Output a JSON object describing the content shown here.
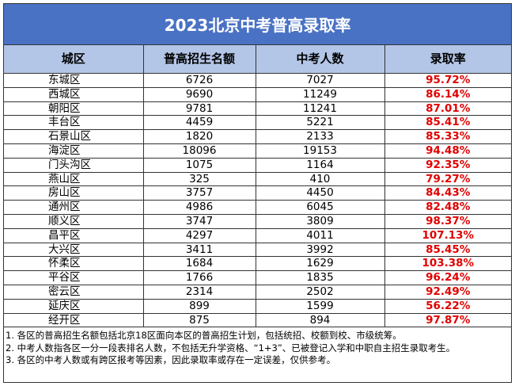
{
  "header": {
    "title": "2023北京中考普高录取率"
  },
  "table": {
    "columns": [
      "城区",
      "普高招生名额",
      "中考人数",
      "录取率"
    ],
    "rows": [
      [
        "东城区",
        6726,
        7027,
        "95.72%"
      ],
      [
        "西城区",
        9690,
        11249,
        "86.14%"
      ],
      [
        "朝阳区",
        9781,
        11241,
        "87.01%"
      ],
      [
        "丰台区",
        4459,
        5221,
        "85.41%"
      ],
      [
        "石景山区",
        1820,
        2133,
        "85.33%"
      ],
      [
        "海淀区",
        18096,
        19153,
        "94.48%"
      ],
      [
        "门头沟区",
        1075,
        1164,
        "92.35%"
      ],
      [
        "燕山区",
        325,
        410,
        "79.27%"
      ],
      [
        "房山区",
        3757,
        4450,
        "84.43%"
      ],
      [
        "通州区",
        4986,
        6045,
        "82.48%"
      ],
      [
        "顺义区",
        3747,
        3809,
        "98.37%"
      ],
      [
        "昌平区",
        4297,
        4011,
        "107.13%"
      ],
      [
        "大兴区",
        3411,
        3992,
        "85.45%"
      ],
      [
        "怀柔区",
        1684,
        1629,
        "103.38%"
      ],
      [
        "平谷区",
        1766,
        1835,
        "96.24%"
      ],
      [
        "密云区",
        2314,
        2502,
        "92.49%"
      ],
      [
        "延庆区",
        899,
        1599,
        "56.22%"
      ],
      [
        "经开区",
        875,
        894,
        "97.87%"
      ]
    ]
  },
  "notes": [
    "1. 各区的普高招生名额包括北京18区面向本区的普高招生计划，包括统招、校额到校、市级统筹。",
    "2. 中考人数指各区一分一段表排名人数，不包括无升学资格、“1+3”、已被登记入学和中职自主招生录取考生。",
    "3. 各区的中考人数或有跨区报考等因素，因此录取率或存在一定误差，仅供参考。"
  ]
}
